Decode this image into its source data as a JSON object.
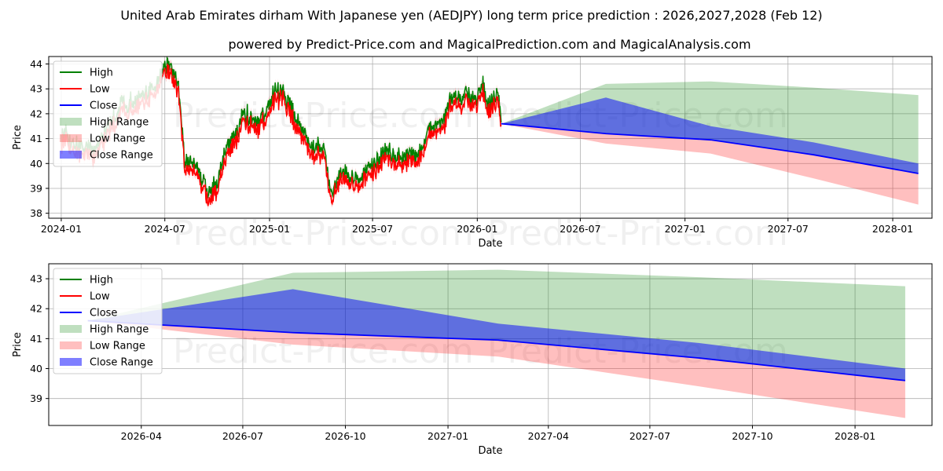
{
  "title": "United Arab Emirates dirham With Japanese yen (AEDJPY) long term price prediction : 2026,2027,2028 (Feb 12)",
  "subtitle": "powered by Predict-Price.com and MagicalPrediction.com and MagicalAnalysis.com",
  "watermark": "Predict-Price.com",
  "colors": {
    "high": "#008000",
    "low": "#ff0000",
    "close": "#0000ff",
    "high_range": "#008000",
    "low_range": "#ff0000",
    "close_range": "#0000ff"
  },
  "legend": [
    "High",
    "Low",
    "Close",
    "High Range",
    "Low Range",
    "Close Range"
  ],
  "chart_data": [
    {
      "type": "line",
      "name": "full-history",
      "xlabel": "Date",
      "ylabel": "Price",
      "xlim": [
        "2023-12-10",
        "2028-03-10"
      ],
      "ylim": [
        37.8,
        44.3
      ],
      "xticks": [
        {
          "date": "2024-01-01",
          "label": "2024-01"
        },
        {
          "date": "2024-07-01",
          "label": "2024-07"
        },
        {
          "date": "2025-01-01",
          "label": "2025-01"
        },
        {
          "date": "2025-07-01",
          "label": "2025-07"
        },
        {
          "date": "2026-01-01",
          "label": "2026-01"
        },
        {
          "date": "2026-07-01",
          "label": "2026-07"
        },
        {
          "date": "2027-01-01",
          "label": "2027-01"
        },
        {
          "date": "2027-07-01",
          "label": "2027-07"
        },
        {
          "date": "2028-01-01",
          "label": "2028-01"
        }
      ],
      "yticks": [
        38,
        39,
        40,
        41,
        42,
        43,
        44
      ],
      "history_anchors": [
        [
          "2024-01-01",
          41.0
        ],
        [
          "2024-02-15",
          40.4
        ],
        [
          "2024-03-01",
          40.5
        ],
        [
          "2024-04-01",
          41.6
        ],
        [
          "2024-04-20",
          42.4
        ],
        [
          "2024-05-01",
          42.3
        ],
        [
          "2024-06-01",
          42.6
        ],
        [
          "2024-07-01",
          43.7
        ],
        [
          "2024-07-10",
          43.8
        ],
        [
          "2024-07-25",
          43.0
        ],
        [
          "2024-08-05",
          40.0
        ],
        [
          "2024-08-20",
          40.0
        ],
        [
          "2024-09-01",
          39.4
        ],
        [
          "2024-09-16",
          38.6
        ],
        [
          "2024-09-30",
          39.0
        ],
        [
          "2024-10-15",
          40.4
        ],
        [
          "2024-11-01",
          40.9
        ],
        [
          "2024-11-15",
          41.8
        ],
        [
          "2024-12-01",
          41.8
        ],
        [
          "2024-12-10",
          41.5
        ],
        [
          "2024-12-25",
          41.9
        ],
        [
          "2025-01-10",
          42.8
        ],
        [
          "2025-01-25",
          42.7
        ],
        [
          "2025-02-10",
          42.0
        ],
        [
          "2025-02-25",
          41.4
        ],
        [
          "2025-03-10",
          40.6
        ],
        [
          "2025-03-25",
          40.4
        ],
        [
          "2025-04-08",
          40.6
        ],
        [
          "2025-04-15",
          39.0
        ],
        [
          "2025-04-22",
          38.7
        ],
        [
          "2025-05-01",
          39.3
        ],
        [
          "2025-05-13",
          39.6
        ],
        [
          "2025-05-25",
          39.3
        ],
        [
          "2025-06-10",
          39.3
        ],
        [
          "2025-07-01",
          39.8
        ],
        [
          "2025-07-15",
          40.2
        ],
        [
          "2025-08-01",
          40.3
        ],
        [
          "2025-08-15",
          40.1
        ],
        [
          "2025-09-01",
          40.2
        ],
        [
          "2025-09-15",
          40.2
        ],
        [
          "2025-10-01",
          40.6
        ],
        [
          "2025-10-10",
          41.3
        ],
        [
          "2025-10-25",
          41.5
        ],
        [
          "2025-11-05",
          41.7
        ],
        [
          "2025-11-20",
          42.6
        ],
        [
          "2025-12-01",
          42.4
        ],
        [
          "2025-12-15",
          42.6
        ],
        [
          "2026-01-01",
          42.6
        ],
        [
          "2026-01-10",
          43.1
        ],
        [
          "2026-01-20",
          42.2
        ],
        [
          "2026-01-28",
          42.3
        ],
        [
          "2026-02-05",
          42.7
        ],
        [
          "2026-02-12",
          41.6
        ]
      ],
      "forecast": {
        "dates": [
          "2026-02-12",
          "2026-08-15",
          "2027-02-15",
          "2027-08-15",
          "2028-02-15"
        ],
        "high": [
          41.6,
          43.2,
          43.3,
          43.05,
          42.75
        ],
        "close_upper": [
          41.6,
          42.65,
          41.5,
          40.85,
          40.0
        ],
        "close": [
          41.6,
          41.2,
          40.95,
          40.35,
          39.6
        ],
        "low": [
          41.6,
          40.8,
          40.4,
          39.4,
          38.35
        ]
      }
    },
    {
      "type": "area",
      "name": "forecast-zoom",
      "xlabel": "Date",
      "ylabel": "Price",
      "xlim": [
        "2026-01-08",
        "2028-03-10"
      ],
      "ylim": [
        38.1,
        43.5
      ],
      "xticks": [
        {
          "date": "2026-04-01",
          "label": "2026-04"
        },
        {
          "date": "2026-07-01",
          "label": "2026-07"
        },
        {
          "date": "2026-10-01",
          "label": "2026-10"
        },
        {
          "date": "2027-01-01",
          "label": "2027-01"
        },
        {
          "date": "2027-04-01",
          "label": "2027-04"
        },
        {
          "date": "2027-07-01",
          "label": "2027-07"
        },
        {
          "date": "2027-10-01",
          "label": "2027-10"
        },
        {
          "date": "2028-01-01",
          "label": "2028-01"
        }
      ],
      "yticks": [
        39,
        40,
        41,
        42,
        43
      ],
      "forecast": {
        "dates": [
          "2026-02-12",
          "2026-08-15",
          "2027-02-15",
          "2027-08-15",
          "2028-02-15"
        ],
        "high": [
          41.6,
          43.2,
          43.3,
          43.05,
          42.75
        ],
        "close_upper": [
          41.6,
          42.65,
          41.5,
          40.85,
          40.0
        ],
        "close": [
          41.6,
          41.2,
          40.95,
          40.35,
          39.6
        ],
        "low": [
          41.6,
          40.8,
          40.4,
          39.4,
          38.35
        ]
      }
    }
  ]
}
